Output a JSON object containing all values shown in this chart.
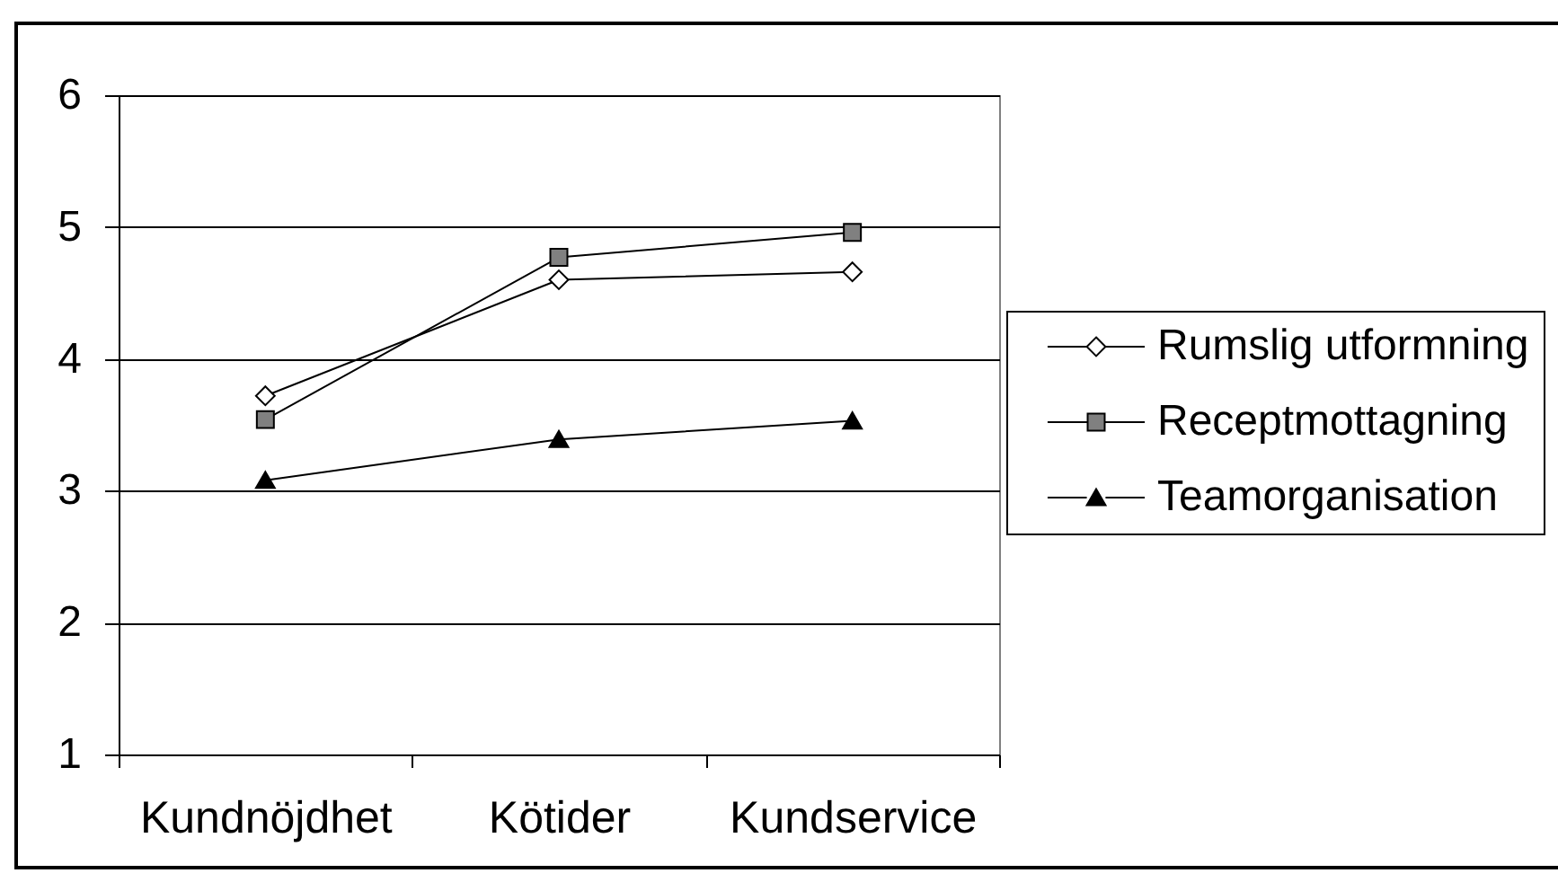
{
  "chart_data": {
    "type": "line",
    "categories": [
      "Kundnöjdhet",
      "Kötider",
      "Kundservice"
    ],
    "series": [
      {
        "name": "Rumslig utformning",
        "color": "#ffffff",
        "marker": "diamond",
        "values": [
          3.72,
          4.6,
          4.66
        ]
      },
      {
        "name": "Receptmottagning",
        "color": "#808080",
        "marker": "square",
        "values": [
          3.54,
          4.77,
          4.96
        ]
      },
      {
        "name": "Teamorganisation",
        "color": "#000000",
        "marker": "triangle",
        "values": [
          3.08,
          3.39,
          3.53
        ]
      }
    ],
    "ylim": [
      1,
      6
    ],
    "yticks": [
      1,
      2,
      3,
      4,
      5,
      6
    ],
    "grid": "y",
    "legend": "right",
    "line_style": "solid"
  }
}
